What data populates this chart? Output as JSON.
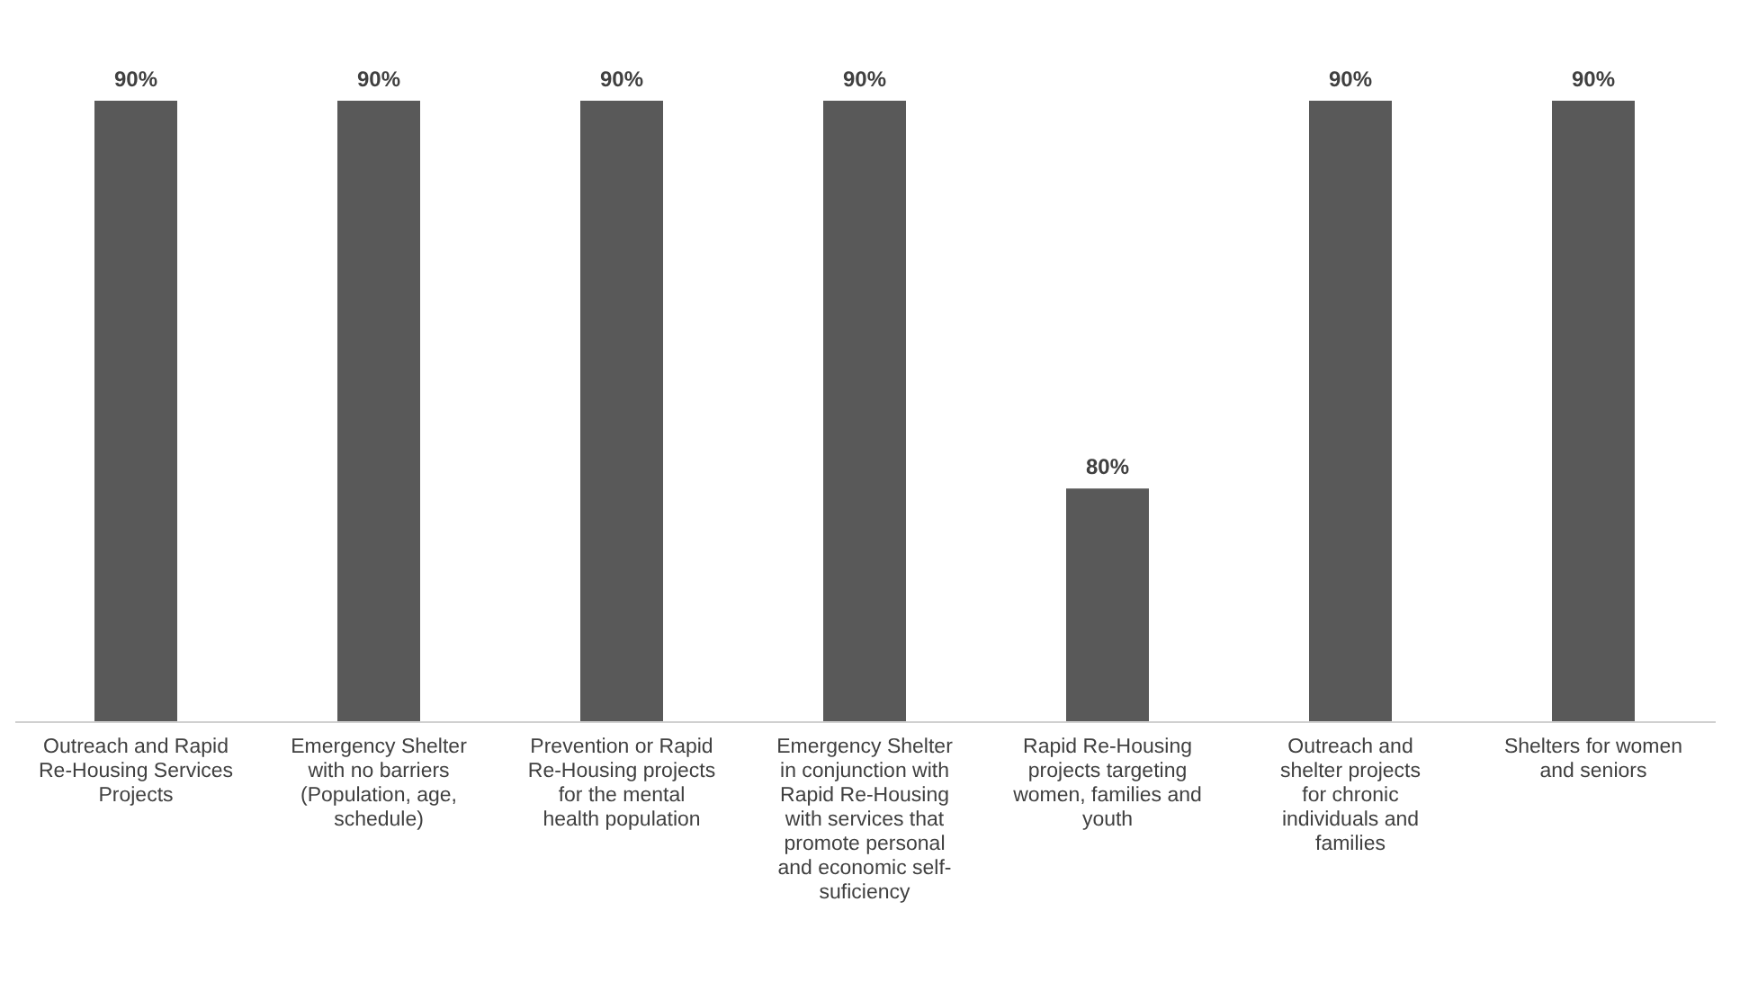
{
  "chart_data": {
    "type": "bar",
    "categories": [
      "Outreach and Rapid Re-Housing Services Projects",
      "Emergency Shelter with no barriers (Population, age, schedule)",
      "Prevention or Rapid Re-Housing projects for the mental health population",
      "Emergency Shelter in conjunction with Rapid Re-Housing with services that promote personal and economic self-suficiency",
      "Rapid Re-Housing projects targeting women, families and youth",
      "Outreach and shelter projects for chronic individuals and families",
      "Shelters for women and seniors"
    ],
    "values": [
      90,
      90,
      90,
      90,
      80,
      90,
      90
    ],
    "value_labels": [
      "90%",
      "90%",
      "90%",
      "90%",
      "80%",
      "90%",
      "90%"
    ],
    "color": "#595959",
    "ylim": [
      74,
      90
    ],
    "tick_labels": "x",
    "grid": false
  }
}
